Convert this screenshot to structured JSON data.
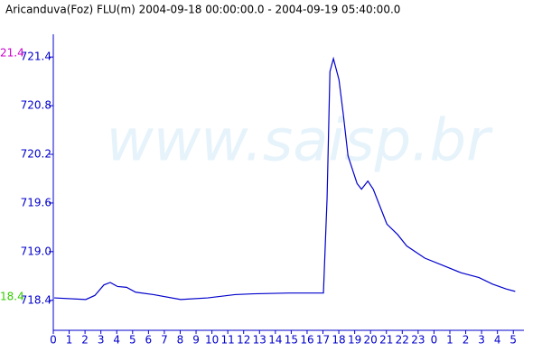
{
  "chart_data": {
    "type": "line",
    "title": "Aricanduva(Foz) FLU(m) 2004-09-18 00:00:00.0 - 2004-09-19 05:40:00.0",
    "watermark": "www.saisp.br",
    "max_label": "21.4",
    "max_color": "#cc00cc",
    "min_label": "18.4",
    "min_color": "#33cc00",
    "color": "#0000cc",
    "x": [
      0.06,
      2.05,
      2.62,
      3.19,
      3.59,
      4.05,
      4.62,
      5.19,
      6.32,
      8.03,
      9.74,
      11.45,
      12.59,
      14.87,
      17.03,
      17.26,
      17.44,
      17.66,
      18.01,
      18.29,
      18.58,
      19.15,
      19.43,
      19.83,
      20.17,
      20.57,
      21.03,
      21.71,
      22.28,
      23.42,
      24.56,
      25.7,
      26.84,
      27.69,
      28.55,
      29.12
    ],
    "values": [
      718.43,
      718.41,
      718.46,
      718.59,
      718.62,
      718.57,
      718.56,
      718.5,
      718.47,
      718.41,
      718.43,
      718.47,
      718.48,
      718.49,
      718.49,
      719.66,
      721.22,
      721.38,
      721.12,
      720.68,
      720.18,
      719.84,
      719.77,
      719.87,
      719.77,
      719.57,
      719.34,
      719.21,
      719.07,
      718.92,
      718.83,
      718.74,
      718.68,
      718.6,
      718.54,
      718.51
    ],
    "xlim": [
      0,
      29.67
    ],
    "xticks": [
      0,
      1,
      2,
      3,
      4,
      5,
      6,
      7,
      8,
      9,
      10,
      11,
      12,
      13,
      14,
      15,
      16,
      17,
      18,
      19,
      20,
      21,
      22,
      23,
      {
        "value": 24,
        "label": "0"
      },
      {
        "value": 25,
        "label": "1"
      },
      {
        "value": 26,
        "label": "2"
      },
      {
        "value": 27,
        "label": "3"
      },
      {
        "value": 28,
        "label": "4"
      },
      {
        "value": 29,
        "label": "5"
      }
    ],
    "ylim": [
      718.03,
      721.68
    ],
    "yticks": [
      {
        "value": 718.4,
        "label": "718.4"
      },
      {
        "value": 719.0,
        "label": "719.0"
      },
      {
        "value": 719.6,
        "label": "719.6"
      },
      {
        "value": 720.2,
        "label": "720.2"
      },
      {
        "value": 720.8,
        "label": "720.8"
      },
      {
        "value": 721.4,
        "label": "721.4"
      }
    ]
  }
}
